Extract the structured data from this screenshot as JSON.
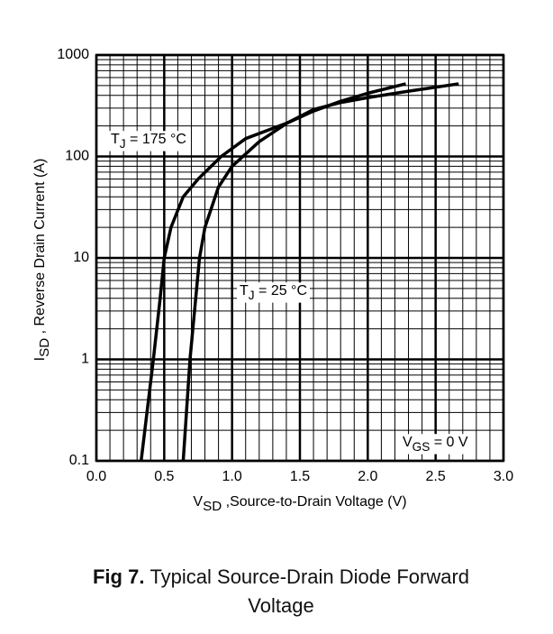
{
  "chart_data": {
    "type": "line",
    "log_y": true,
    "grid": true,
    "color": "#000000",
    "x_label": {
      "main": "V",
      "sub": "SD",
      "rest": " ,Source-to-Drain Voltage (V)"
    },
    "y_label": {
      "main": "I",
      "sub": "SD",
      "rest": " , Reverse Drain Current (A)"
    },
    "xlim": [
      0,
      3
    ],
    "ylim": [
      0.1,
      1000
    ],
    "xticks": [
      {
        "value": 0,
        "label": "0.0"
      },
      0.5,
      {
        "value": 1,
        "label": "1.0"
      },
      1.5,
      {
        "value": 2,
        "label": "2.0"
      },
      2.5,
      {
        "value": 3,
        "label": "3.0"
      }
    ],
    "yticks": [
      0.1,
      1,
      10,
      100,
      1000
    ],
    "series": [
      {
        "label": {
          "main": "T",
          "sub": "J",
          "rest": " = 175 °C"
        },
        "color": "#000000",
        "x": [
          0.33,
          0.42,
          0.47,
          0.5,
          0.55,
          0.64,
          0.75,
          0.92,
          1.1,
          1.41,
          1.6,
          1.8,
          2.0,
          2.28
        ],
        "values": [
          0.1,
          1,
          4,
          10,
          20,
          40,
          60,
          100,
          150,
          215,
          280,
          350,
          420,
          520
        ]
      },
      {
        "label": {
          "main": "T",
          "sub": "J",
          "rest": " = 25 °C"
        },
        "color": "#000000",
        "x": [
          0.64,
          0.69,
          0.76,
          0.8,
          0.9,
          1.0,
          1.2,
          1.41,
          1.6,
          1.8,
          2.0,
          2.3,
          2.67
        ],
        "values": [
          0.1,
          1,
          10,
          20,
          50,
          80,
          140,
          215,
          290,
          340,
          380,
          440,
          520
        ]
      }
    ],
    "condition": {
      "main": "V",
      "sub": "GS",
      "rest": " = 0 V"
    }
  },
  "caption": {
    "label": "Fig 7.",
    "text": "Typical Source-Drain Diode Forward Voltage"
  }
}
